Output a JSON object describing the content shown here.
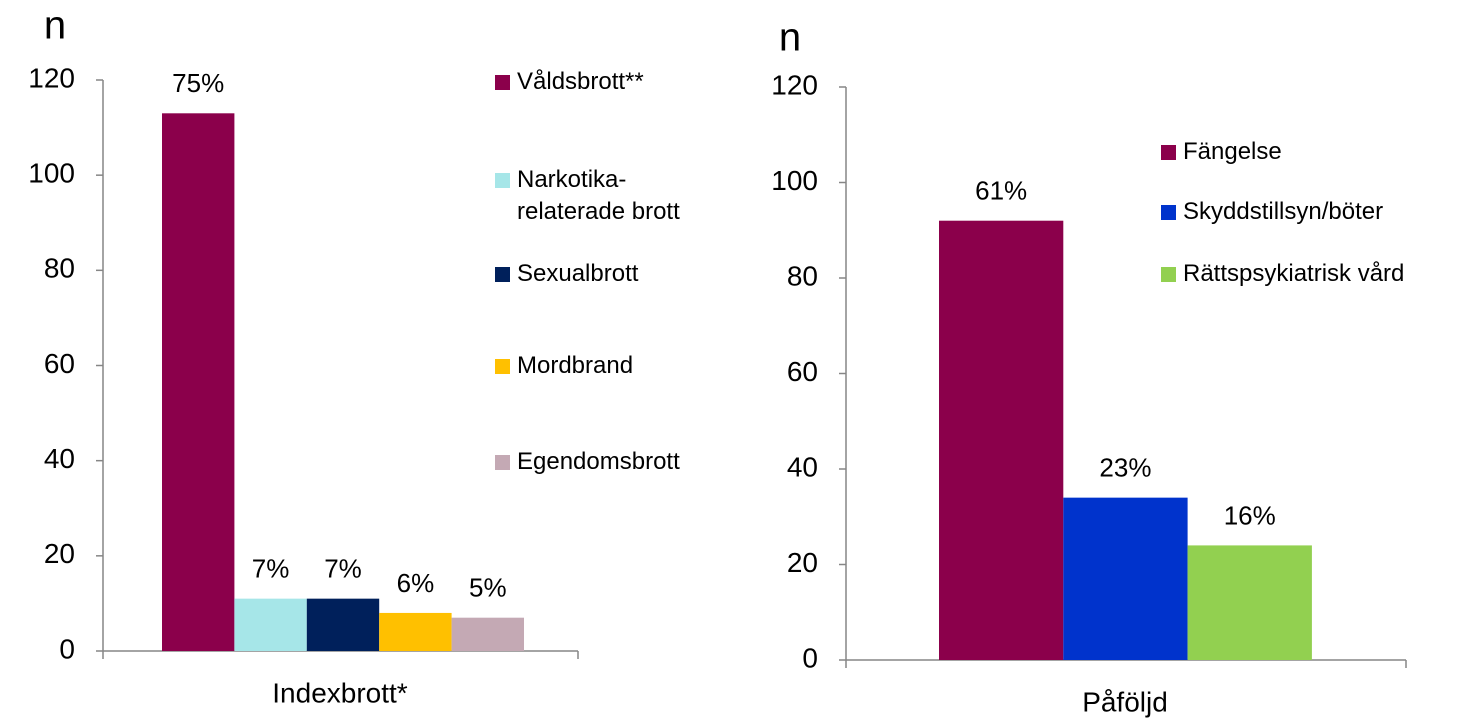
{
  "chart_data": [
    {
      "type": "bar",
      "ylabel": "n",
      "xlabel": "Indexbrott*",
      "categories": [
        "Indexbrott*"
      ],
      "ylim": [
        0,
        120
      ],
      "yticks": [
        0,
        20,
        40,
        60,
        80,
        100,
        120
      ],
      "series": [
        {
          "name": "Våldsbrott**",
          "color": "#8b004b",
          "values": [
            113
          ],
          "annotations": [
            "75%"
          ]
        },
        {
          "name": "Narkotika-relaterade brott",
          "color": "#a6e6e8",
          "values": [
            11
          ],
          "annotations": [
            "7%"
          ]
        },
        {
          "name": "Sexualbrott",
          "color": "#00205b",
          "values": [
            11
          ],
          "annotations": [
            "7%"
          ]
        },
        {
          "name": "Mordbrand",
          "color": "#ffc000",
          "values": [
            8
          ],
          "annotations": [
            "6%"
          ]
        },
        {
          "name": "Egendomsbrott",
          "color": "#c4a9b4",
          "values": [
            7
          ],
          "annotations": [
            "5%"
          ]
        }
      ]
    },
    {
      "type": "bar",
      "ylabel": "n",
      "xlabel": "Påföljd",
      "categories": [
        "Påföljd"
      ],
      "ylim": [
        0,
        120
      ],
      "yticks": [
        0,
        20,
        40,
        60,
        80,
        100,
        120
      ],
      "series": [
        {
          "name": "Fängelse",
          "color": "#8b004b",
          "values": [
            92
          ],
          "annotations": [
            "61%"
          ]
        },
        {
          "name": "Skyddstillsyn/böter",
          "color": "#0033cc",
          "values": [
            34
          ],
          "annotations": [
            "23%"
          ]
        },
        {
          "name": "Rättspsykiatrisk vård",
          "color": "#92d050",
          "values": [
            24
          ],
          "annotations": [
            "16%"
          ]
        }
      ]
    }
  ]
}
